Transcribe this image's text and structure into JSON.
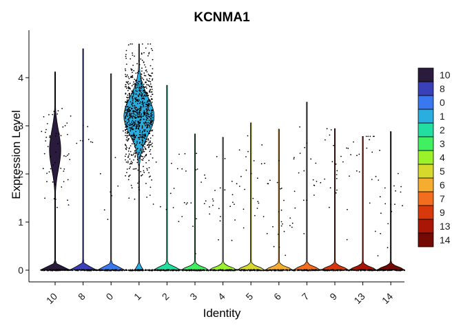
{
  "chart_data": {
    "type": "violin",
    "title": "KCNMA1",
    "xlabel": "Identity",
    "ylabel": "Expression Level",
    "ylim": [
      -0.2,
      4.8
    ],
    "yticks": [
      0,
      1,
      2,
      3,
      4
    ],
    "grid": false,
    "legend_position": "right",
    "categories": [
      "10",
      "8",
      "0",
      "1",
      "2",
      "3",
      "4",
      "5",
      "6",
      "7",
      "9",
      "13",
      "14"
    ],
    "colors": {
      "10": "#2a1a3c",
      "8": "#3a40b8",
      "0": "#3a78f0",
      "1": "#2aaee0",
      "2": "#22dea0",
      "3": "#40f060",
      "4": "#9af22a",
      "5": "#d6d82c",
      "6": "#f6ac2e",
      "7": "#f26e1e",
      "9": "#d8390c",
      "13": "#aa1606",
      "14": "#730a04"
    },
    "series": [
      {
        "category": "10",
        "max": 4.12,
        "fraction_expressing": 0.6,
        "median_nonzero": 2.5
      },
      {
        "category": "8",
        "max": 4.6,
        "fraction_expressing": 0.07,
        "median_nonzero": 2.6
      },
      {
        "category": "0",
        "max": 4.08,
        "fraction_expressing": 0.06,
        "median_nonzero": 1.9
      },
      {
        "category": "1",
        "max": 4.7,
        "fraction_expressing": 0.93,
        "median_nonzero": 3.2
      },
      {
        "category": "2",
        "max": 3.84,
        "fraction_expressing": 0.08,
        "median_nonzero": 1.8
      },
      {
        "category": "3",
        "max": 2.83,
        "fraction_expressing": 0.01,
        "median_nonzero": 1.5
      },
      {
        "category": "4",
        "max": 2.76,
        "fraction_expressing": 0.03,
        "median_nonzero": 1.4
      },
      {
        "category": "5",
        "max": 3.06,
        "fraction_expressing": 0.03,
        "median_nonzero": 1.8
      },
      {
        "category": "6",
        "max": 2.93,
        "fraction_expressing": 0.04,
        "median_nonzero": 1.3
      },
      {
        "category": "7",
        "max": 3.49,
        "fraction_expressing": 0.02,
        "median_nonzero": 1.8
      },
      {
        "category": "9",
        "max": 2.94,
        "fraction_expressing": 0.02,
        "median_nonzero": 1.9
      },
      {
        "category": "13",
        "max": 2.78,
        "fraction_expressing": 0.01,
        "median_nonzero": 2.3
      },
      {
        "category": "14",
        "max": 2.88,
        "fraction_expressing": 0.01,
        "median_nonzero": 1.5
      }
    ]
  }
}
